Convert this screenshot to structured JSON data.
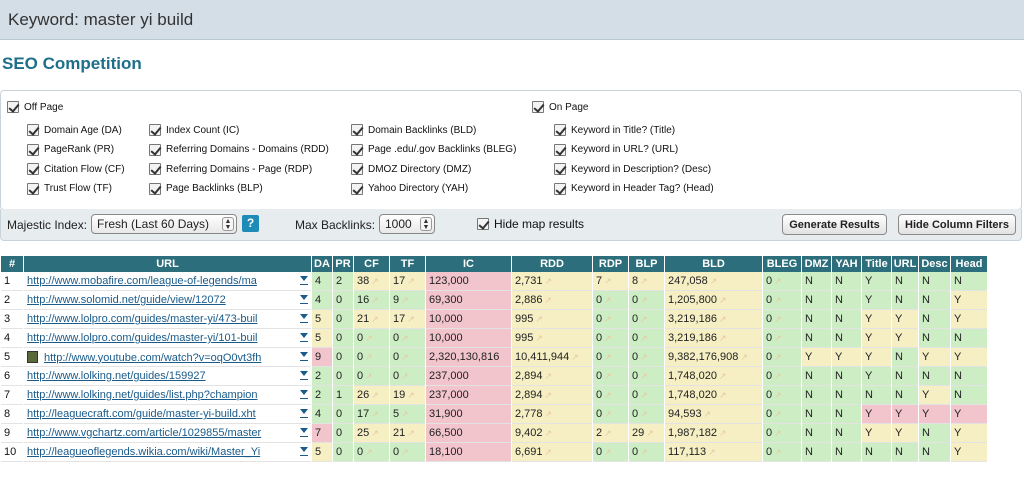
{
  "header": {
    "keyword_label": "Keyword: master yi build"
  },
  "section_title": "SEO Competition",
  "filters": {
    "off_page": "Off Page",
    "on_page": "On Page",
    "col1": [
      "Domain Age (DA)",
      "PageRank (PR)",
      "Citation Flow (CF)",
      "Trust Flow (TF)"
    ],
    "col2": [
      "Index Count (IC)",
      "Referring Domains - Domains (RDD)",
      "Referring Domains - Page (RDP)",
      "Page Backlinks (BLP)"
    ],
    "col3": [
      "Domain Backlinks (BLD)",
      "Page .edu/.gov Backlinks (BLEG)",
      "DMOZ Directory (DMZ)",
      "Yahoo Directory (YAH)"
    ],
    "col4": [
      "Keyword in Title? (Title)",
      "Keyword in URL? (URL)",
      "Keyword in Description? (Desc)",
      "Keyword in Header Tag? (Head)"
    ]
  },
  "toolbar": {
    "majestic_label": "Majestic Index:",
    "majestic_value": "Fresh (Last 60 Days)",
    "help": "?",
    "max_backlinks_label": "Max Backlinks:",
    "max_backlinks_value": "1000",
    "hide_map": "Hide map results",
    "generate": "Generate Results",
    "hide_filters": "Hide Column Filters"
  },
  "table": {
    "headers": [
      "#",
      "URL",
      "DA",
      "PR",
      "CF",
      "TF",
      "IC",
      "RDD",
      "RDP",
      "BLP",
      "BLD",
      "BLEG",
      "DMZ",
      "YAH",
      "Title",
      "URL",
      "Desc",
      "Head"
    ],
    "rows": [
      {
        "n": "1",
        "url": "http://www.mobafire.com/league-of-legends/ma",
        "da": "4",
        "pr": "2",
        "cf": "38",
        "tf": "17",
        "ic": "123,000",
        "rdd": "2,731",
        "rdp": "7",
        "blp": "8",
        "bld": "247,058",
        "bleg": "0",
        "dmz": "N",
        "yah": "N",
        "title": "Y",
        "urlk": "N",
        "desc": "N",
        "head": "N",
        "video": false,
        "cls": [
          "g",
          "g",
          "y",
          "y",
          "r",
          "y",
          "y",
          "y",
          "y",
          "g",
          "g",
          "g",
          "g",
          "g",
          "g",
          "g"
        ]
      },
      {
        "n": "2",
        "url": "http://www.solomid.net/guide/view/12072",
        "da": "4",
        "pr": "0",
        "cf": "16",
        "tf": "9",
        "ic": "69,300",
        "rdd": "2,886",
        "rdp": "0",
        "blp": "0",
        "bld": "1,205,800",
        "bleg": "0",
        "dmz": "N",
        "yah": "N",
        "title": "Y",
        "urlk": "N",
        "desc": "N",
        "head": "Y",
        "cls": [
          "g",
          "g",
          "g",
          "g",
          "r",
          "y",
          "g",
          "g",
          "y",
          "g",
          "g",
          "g",
          "g",
          "g",
          "g",
          "y"
        ]
      },
      {
        "n": "3",
        "url": "http://www.lolpro.com/guides/master-yi/473-buil",
        "da": "5",
        "pr": "0",
        "cf": "21",
        "tf": "17",
        "ic": "10,000",
        "rdd": "995",
        "rdp": "0",
        "blp": "0",
        "bld": "3,219,186",
        "bleg": "0",
        "dmz": "N",
        "yah": "N",
        "title": "Y",
        "urlk": "Y",
        "desc": "N",
        "head": "Y",
        "cls": [
          "y",
          "g",
          "y",
          "y",
          "r",
          "y",
          "g",
          "g",
          "y",
          "g",
          "g",
          "g",
          "y",
          "y",
          "g",
          "y"
        ]
      },
      {
        "n": "4",
        "url": "http://www.lolpro.com/guides/master-yi/101-buil",
        "da": "5",
        "pr": "0",
        "cf": "0",
        "tf": "0",
        "ic": "10,000",
        "rdd": "995",
        "rdp": "0",
        "blp": "0",
        "bld": "3,219,186",
        "bleg": "0",
        "dmz": "N",
        "yah": "N",
        "title": "Y",
        "urlk": "Y",
        "desc": "N",
        "head": "N",
        "cls": [
          "y",
          "g",
          "g",
          "g",
          "r",
          "y",
          "g",
          "g",
          "y",
          "g",
          "g",
          "g",
          "y",
          "y",
          "g",
          "g"
        ]
      },
      {
        "n": "5",
        "url": "http://www.youtube.com/watch?v=oqO0vt3fh",
        "da": "9",
        "pr": "0",
        "cf": "0",
        "tf": "0",
        "ic": "2,320,130,816",
        "rdd": "10,411,944",
        "rdp": "0",
        "blp": "0",
        "bld": "9,382,176,908",
        "bleg": "0",
        "dmz": "Y",
        "yah": "Y",
        "title": "Y",
        "urlk": "N",
        "desc": "Y",
        "head": "Y",
        "video": true,
        "cls": [
          "r",
          "g",
          "g",
          "g",
          "r",
          "y",
          "g",
          "g",
          "y",
          "g",
          "y",
          "y",
          "y",
          "g",
          "y",
          "y"
        ]
      },
      {
        "n": "6",
        "url": "http://www.lolking.net/guides/159927",
        "da": "2",
        "pr": "0",
        "cf": "0",
        "tf": "0",
        "ic": "237,000",
        "rdd": "2,894",
        "rdp": "0",
        "blp": "0",
        "bld": "1,748,020",
        "bleg": "0",
        "dmz": "N",
        "yah": "N",
        "title": "Y",
        "urlk": "N",
        "desc": "N",
        "head": "N",
        "cls": [
          "g",
          "g",
          "g",
          "g",
          "r",
          "y",
          "g",
          "g",
          "y",
          "g",
          "g",
          "g",
          "g",
          "g",
          "g",
          "g"
        ]
      },
      {
        "n": "7",
        "url": "http://www.lolking.net/guides/list.php?champion",
        "da": "2",
        "pr": "1",
        "cf": "26",
        "tf": "19",
        "ic": "237,000",
        "rdd": "2,894",
        "rdp": "0",
        "blp": "0",
        "bld": "1,748,020",
        "bleg": "0",
        "dmz": "N",
        "yah": "N",
        "title": "N",
        "urlk": "N",
        "desc": "Y",
        "head": "N",
        "cls": [
          "g",
          "g",
          "y",
          "y",
          "r",
          "y",
          "g",
          "g",
          "y",
          "g",
          "g",
          "g",
          "g",
          "g",
          "y",
          "g"
        ]
      },
      {
        "n": "8",
        "url": "http://leaguecraft.com/guide/master-yi-build.xht",
        "da": "4",
        "pr": "0",
        "cf": "17",
        "tf": "5",
        "ic": "31,900",
        "rdd": "2,778",
        "rdp": "0",
        "blp": "0",
        "bld": "94,593",
        "bleg": "0",
        "dmz": "N",
        "yah": "N",
        "title": "Y",
        "urlk": "Y",
        "desc": "Y",
        "head": "Y",
        "cls": [
          "g",
          "g",
          "g",
          "g",
          "r",
          "y",
          "g",
          "g",
          "y",
          "g",
          "g",
          "g",
          "r",
          "r",
          "r",
          "r"
        ]
      },
      {
        "n": "9",
        "url": "http://www.vgchartz.com/article/1029855/master",
        "da": "7",
        "pr": "0",
        "cf": "25",
        "tf": "21",
        "ic": "66,500",
        "rdd": "9,402",
        "rdp": "2",
        "blp": "29",
        "bld": "1,987,182",
        "bleg": "0",
        "dmz": "N",
        "yah": "N",
        "title": "Y",
        "urlk": "Y",
        "desc": "N",
        "head": "Y",
        "cls": [
          "r",
          "g",
          "y",
          "y",
          "r",
          "y",
          "y",
          "y",
          "y",
          "g",
          "g",
          "g",
          "y",
          "y",
          "g",
          "y"
        ]
      },
      {
        "n": "10",
        "url": "http://leagueoflegends.wikia.com/wiki/Master_Yi",
        "da": "5",
        "pr": "0",
        "cf": "0",
        "tf": "0",
        "ic": "18,100",
        "rdd": "6,691",
        "rdp": "0",
        "blp": "0",
        "bld": "117,113",
        "bleg": "0",
        "dmz": "N",
        "yah": "N",
        "title": "N",
        "urlk": "N",
        "desc": "N",
        "head": "Y",
        "cls": [
          "y",
          "g",
          "g",
          "g",
          "r",
          "y",
          "g",
          "g",
          "y",
          "g",
          "g",
          "g",
          "g",
          "g",
          "g",
          "y"
        ]
      }
    ]
  }
}
